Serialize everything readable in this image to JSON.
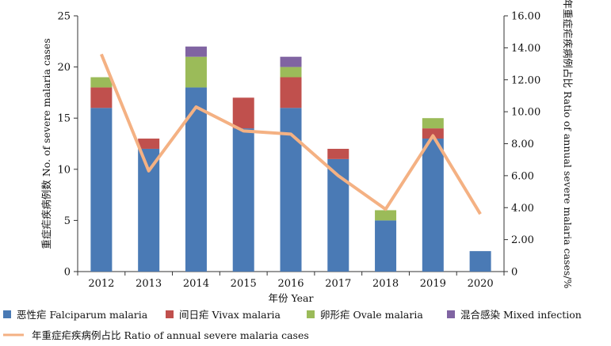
{
  "chart_data": {
    "type": "bar",
    "stacked": true,
    "categories": [
      "2012",
      "2013",
      "2014",
      "2015",
      "2016",
      "2017",
      "2018",
      "2019",
      "2020"
    ],
    "series": [
      {
        "name": "恶性疟 Falciparum malaria",
        "color": "#4a7ab5",
        "values": [
          16,
          12,
          18,
          14,
          16,
          11,
          5,
          13,
          2
        ]
      },
      {
        "name": "间日疟 Vivax malaria",
        "color": "#c0504d",
        "values": [
          2,
          1,
          0,
          3,
          3,
          1,
          0,
          1,
          0
        ]
      },
      {
        "name": "卵形疟 Ovale malaria",
        "color": "#9bbb59",
        "values": [
          1,
          0,
          3,
          0,
          1,
          0,
          1,
          1,
          0
        ]
      },
      {
        "name": "混合感染 Mixed infection",
        "color": "#8064a2",
        "values": [
          0,
          0,
          1,
          0,
          1,
          0,
          0,
          0,
          0
        ]
      }
    ],
    "line_series": {
      "name": "年重症疟疾病例占比 Ratio of annual severe malaria cases",
      "color": "#f4b183",
      "axis": "right",
      "values": [
        13.6,
        6.3,
        10.3,
        8.8,
        8.6,
        6.0,
        3.9,
        8.5,
        3.6
      ]
    },
    "xlabel": "年份 Year",
    "ylabel": "重症疟疾病例数 No. of severe malaria cases",
    "y2label": "年重症疟疾病例占比 Ratio of annual severe malaria cases/%",
    "ylim": [
      0,
      25
    ],
    "yticks": [
      "0",
      "5",
      "10",
      "15",
      "20",
      "25"
    ],
    "y2lim": [
      0,
      16
    ],
    "y2ticks": [
      "0",
      "2.00",
      "4.00",
      "6.00",
      "8.00",
      "10.00",
      "12.00",
      "14.00",
      "16.00"
    ],
    "grid": false,
    "legend_position": "bottom"
  }
}
